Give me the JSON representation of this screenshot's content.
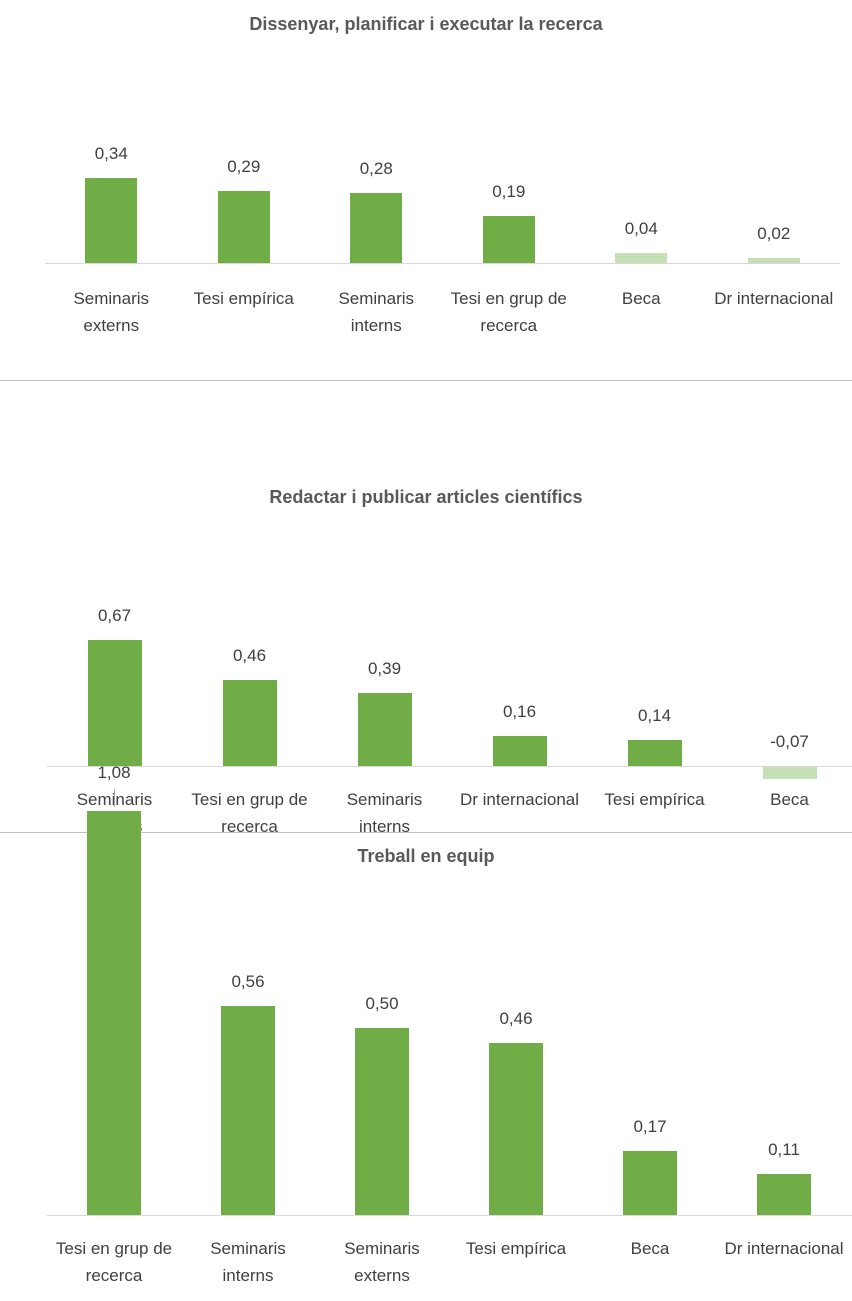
{
  "chart_data": [
    {
      "type": "bar",
      "title": "Dissenyar, planificar i executar la recerca",
      "categories": [
        "Seminaris externs",
        "Tesi empírica",
        "Seminaris interns",
        "Tesi en grup de recerca",
        "Beca",
        "Dr internacional"
      ],
      "values": [
        0.34,
        0.29,
        0.28,
        0.19,
        0.04,
        0.02
      ],
      "value_labels": [
        "0,34",
        "0,29",
        "0,28",
        "0,19",
        "0,04",
        "0,02"
      ],
      "colors": [
        "#70ad47",
        "#70ad47",
        "#70ad47",
        "#70ad47",
        "#c5e0b4",
        "#c5e0b4"
      ],
      "ylim": [
        0,
        0.4
      ]
    },
    {
      "type": "bar",
      "title": "Redactar i publicar articles científics",
      "categories": [
        "Seminaris externs",
        "Tesi en grup de recerca",
        "Seminaris interns",
        "Dr internacional",
        "Tesi empírica",
        "Beca"
      ],
      "values": [
        0.67,
        0.46,
        0.39,
        0.16,
        0.14,
        -0.07
      ],
      "value_labels": [
        "0,67",
        "0,46",
        "0,39",
        "0,16",
        "0,14",
        "-0,07"
      ],
      "colors": [
        "#70ad47",
        "#70ad47",
        "#70ad47",
        "#70ad47",
        "#70ad47",
        "#c5e0b4"
      ],
      "ylim": [
        -0.1,
        0.8
      ]
    },
    {
      "type": "bar",
      "title": "Treball en equip",
      "categories": [
        "Tesi en grup de recerca",
        "Seminaris interns",
        "Seminaris externs",
        "Tesi empírica",
        "Beca",
        "Dr internacional"
      ],
      "values": [
        1.08,
        0.56,
        0.5,
        0.46,
        0.17,
        0.11
      ],
      "value_labels": [
        "1,08",
        "0,56",
        "0,50",
        "0,46",
        "0,17",
        "0,11"
      ],
      "colors": [
        "#70ad47",
        "#70ad47",
        "#70ad47",
        "#70ad47",
        "#70ad47",
        "#70ad47"
      ],
      "ylim": [
        0,
        1.2
      ]
    }
  ]
}
